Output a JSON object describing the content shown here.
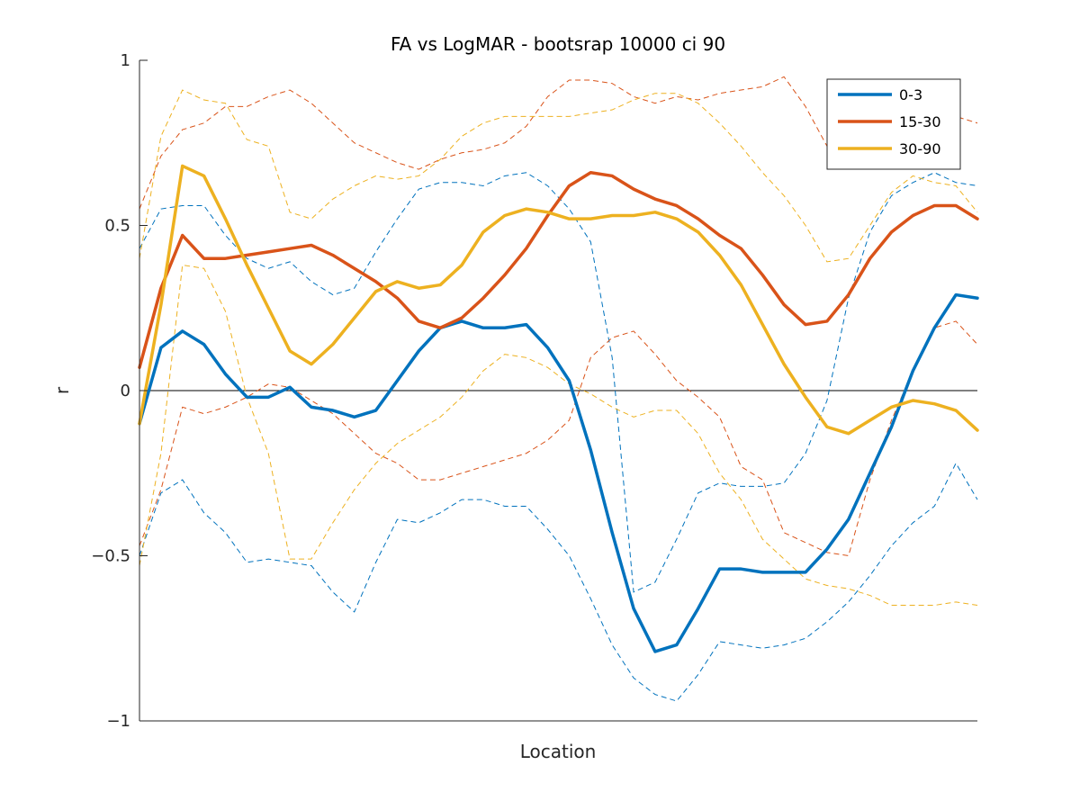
{
  "chart_data": {
    "type": "line",
    "title": "FA vs LogMAR - bootsrap 10000 ci 90",
    "xlabel": "Location",
    "ylabel": "r",
    "ylim": [
      -1,
      1
    ],
    "yticks": [
      -1,
      -0.5,
      0,
      0.5,
      1
    ],
    "ytick_labels": [
      "−1",
      "−0.5",
      "0",
      "0.5",
      "1"
    ],
    "xlim": [
      1,
      40
    ],
    "x": [
      1,
      2,
      3,
      4,
      5,
      6,
      7,
      8,
      9,
      10,
      11,
      12,
      13,
      14,
      15,
      16,
      17,
      18,
      19,
      20,
      21,
      22,
      23,
      24,
      25,
      26,
      27,
      28,
      29,
      30,
      31,
      32,
      33,
      34,
      35,
      36,
      37,
      38,
      39,
      40
    ],
    "zero_line": true,
    "grid": false,
    "legend_position": "top-right",
    "series": [
      {
        "name": "0-3",
        "color": "#0072BD",
        "values": [
          -0.1,
          0.13,
          0.18,
          0.14,
          0.05,
          -0.02,
          -0.02,
          0.01,
          -0.05,
          -0.06,
          -0.08,
          -0.06,
          0.03,
          0.12,
          0.19,
          0.21,
          0.19,
          0.19,
          0.2,
          0.13,
          0.03,
          -0.18,
          -0.43,
          -0.66,
          -0.79,
          -0.77,
          -0.66,
          -0.54,
          -0.54,
          -0.55,
          -0.55,
          -0.55,
          -0.48,
          -0.39,
          -0.25,
          -0.11,
          0.06,
          0.19,
          0.29,
          0.28
        ],
        "ci_low": [
          -0.5,
          -0.31,
          -0.27,
          -0.37,
          -0.43,
          -0.52,
          -0.51,
          -0.52,
          -0.53,
          -0.61,
          -0.67,
          -0.52,
          -0.39,
          -0.4,
          -0.37,
          -0.33,
          -0.33,
          -0.35,
          -0.35,
          -0.42,
          -0.5,
          -0.63,
          -0.77,
          -0.87,
          -0.92,
          -0.94,
          -0.86,
          -0.76,
          -0.77,
          -0.78,
          -0.77,
          -0.75,
          -0.7,
          -0.64,
          -0.56,
          -0.47,
          -0.4,
          -0.35,
          -0.22,
          -0.33
        ],
        "ci_high": [
          0.43,
          0.55,
          0.56,
          0.56,
          0.47,
          0.4,
          0.37,
          0.39,
          0.33,
          0.29,
          0.31,
          0.42,
          0.52,
          0.61,
          0.63,
          0.63,
          0.62,
          0.65,
          0.66,
          0.62,
          0.55,
          0.45,
          0.1,
          -0.61,
          -0.58,
          -0.45,
          -0.31,
          -0.28,
          -0.29,
          -0.29,
          -0.28,
          -0.19,
          -0.03,
          0.28,
          0.48,
          0.59,
          0.63,
          0.66,
          0.63,
          0.62
        ]
      },
      {
        "name": "15-30",
        "color": "#D95319",
        "values": [
          0.07,
          0.31,
          0.47,
          0.4,
          0.4,
          0.41,
          0.42,
          0.43,
          0.44,
          0.41,
          0.37,
          0.33,
          0.28,
          0.21,
          0.19,
          0.22,
          0.28,
          0.35,
          0.43,
          0.53,
          0.62,
          0.66,
          0.65,
          0.61,
          0.58,
          0.56,
          0.52,
          0.47,
          0.43,
          0.35,
          0.26,
          0.2,
          0.21,
          0.29,
          0.4,
          0.48,
          0.53,
          0.56,
          0.56,
          0.52
        ],
        "ci_low": [
          -0.47,
          -0.3,
          -0.05,
          -0.07,
          -0.05,
          -0.02,
          0.02,
          0.01,
          -0.03,
          -0.07,
          -0.13,
          -0.19,
          -0.22,
          -0.27,
          -0.27,
          -0.25,
          -0.23,
          -0.21,
          -0.19,
          -0.15,
          -0.09,
          0.1,
          0.16,
          0.18,
          0.11,
          0.03,
          -0.02,
          -0.08,
          -0.23,
          -0.27,
          -0.43,
          -0.46,
          -0.49,
          -0.5,
          -0.27,
          -0.09,
          0.06,
          0.19,
          0.21,
          0.14
        ],
        "ci_high": [
          0.55,
          0.71,
          0.79,
          0.81,
          0.86,
          0.86,
          0.89,
          0.91,
          0.87,
          0.81,
          0.75,
          0.72,
          0.69,
          0.67,
          0.7,
          0.72,
          0.73,
          0.75,
          0.8,
          0.89,
          0.94,
          0.94,
          0.93,
          0.89,
          0.87,
          0.89,
          0.88,
          0.9,
          0.91,
          0.92,
          0.95,
          0.86,
          0.74,
          0.79,
          0.81,
          0.81,
          0.8,
          0.83,
          0.83,
          0.81
        ]
      },
      {
        "name": "30-90",
        "color": "#EDB120",
        "values": [
          -0.1,
          0.26,
          0.68,
          0.65,
          0.52,
          0.38,
          0.25,
          0.12,
          0.08,
          0.14,
          0.22,
          0.3,
          0.33,
          0.31,
          0.32,
          0.38,
          0.48,
          0.53,
          0.55,
          0.54,
          0.52,
          0.52,
          0.53,
          0.53,
          0.54,
          0.52,
          0.48,
          0.41,
          0.32,
          0.2,
          0.08,
          -0.02,
          -0.11,
          -0.13,
          -0.09,
          -0.05,
          -0.03,
          -0.04,
          -0.06,
          -0.12
        ],
        "ci_low": [
          -0.53,
          -0.19,
          0.38,
          0.37,
          0.24,
          -0.02,
          -0.19,
          -0.51,
          -0.51,
          -0.4,
          -0.3,
          -0.22,
          -0.16,
          -0.12,
          -0.08,
          -0.02,
          0.06,
          0.11,
          0.1,
          0.07,
          0.02,
          -0.01,
          -0.05,
          -0.08,
          -0.06,
          -0.06,
          -0.13,
          -0.25,
          -0.33,
          -0.45,
          -0.51,
          -0.57,
          -0.59,
          -0.6,
          -0.62,
          -0.65,
          -0.65,
          -0.65,
          -0.64,
          -0.65
        ],
        "ci_high": [
          0.4,
          0.77,
          0.91,
          0.88,
          0.87,
          0.76,
          0.74,
          0.54,
          0.52,
          0.58,
          0.62,
          0.65,
          0.64,
          0.65,
          0.7,
          0.77,
          0.81,
          0.83,
          0.83,
          0.83,
          0.83,
          0.84,
          0.85,
          0.88,
          0.9,
          0.9,
          0.87,
          0.81,
          0.74,
          0.66,
          0.59,
          0.5,
          0.39,
          0.4,
          0.5,
          0.6,
          0.65,
          0.63,
          0.62,
          0.54
        ]
      }
    ]
  }
}
